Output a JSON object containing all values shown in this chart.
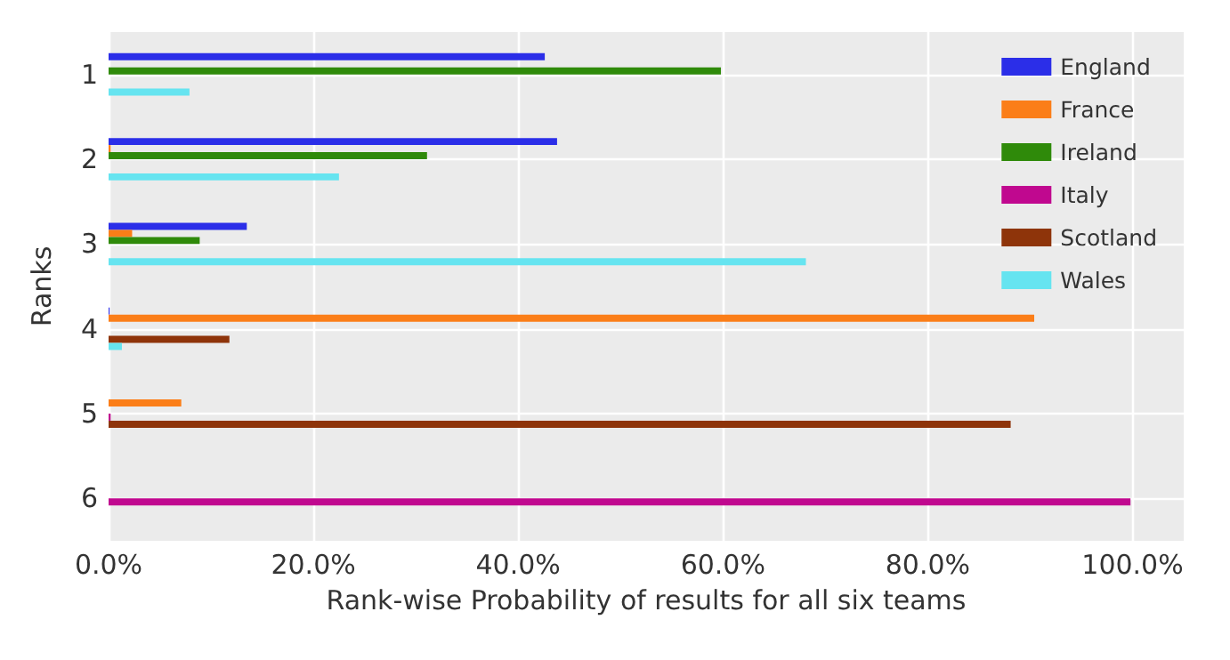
{
  "chart_data": {
    "type": "bar",
    "orientation": "horizontal",
    "xlabel": "Rank-wise Probability of results for all six teams",
    "ylabel": "Ranks",
    "categories": [
      "1",
      "2",
      "3",
      "4",
      "5",
      "6"
    ],
    "series": [
      {
        "name": "England",
        "color": "#2b2ee8",
        "values": [
          42.6,
          43.8,
          13.5,
          0.1,
          0,
          0
        ]
      },
      {
        "name": "France",
        "color": "#fb7e18",
        "values": [
          0,
          0.2,
          2.3,
          90.4,
          7.1,
          0
        ]
      },
      {
        "name": "Ireland",
        "color": "#2f8a0a",
        "values": [
          59.8,
          31.1,
          8.9,
          0,
          0,
          0
        ]
      },
      {
        "name": "Italy",
        "color": "#c0088f",
        "values": [
          0,
          0,
          0,
          0,
          0.2,
          99.8
        ]
      },
      {
        "name": "Scotland",
        "color": "#8e340a",
        "values": [
          0,
          0,
          0,
          11.8,
          88.1,
          0
        ]
      },
      {
        "name": "Wales",
        "color": "#66e4f0",
        "values": [
          7.9,
          22.5,
          68.1,
          1.3,
          0,
          0
        ]
      }
    ],
    "xlim": [
      0,
      105
    ],
    "xticks": [
      {
        "value": 0,
        "label": "0.0%"
      },
      {
        "value": 20,
        "label": "20.0%"
      },
      {
        "value": 40,
        "label": "40.0%"
      },
      {
        "value": 60,
        "label": "60.0%"
      },
      {
        "value": 80,
        "label": "80.0%"
      },
      {
        "value": 100,
        "label": "100.0%"
      }
    ],
    "grid": true,
    "legend": "top right"
  }
}
